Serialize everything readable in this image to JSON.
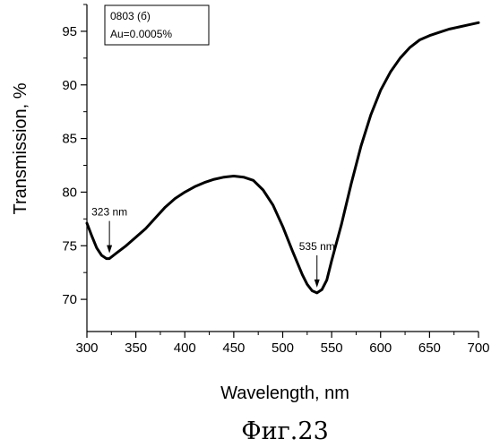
{
  "chart_data": {
    "type": "line",
    "xlabel": "Wavelength, nm",
    "ylabel": "Transmission, %",
    "xlim": [
      300,
      700
    ],
    "ylim": [
      67,
      97.5
    ],
    "x_ticks": [
      300,
      350,
      400,
      450,
      500,
      550,
      600,
      650,
      700
    ],
    "y_ticks": [
      70,
      75,
      80,
      85,
      90,
      95
    ],
    "grid": false,
    "legend": {
      "placement": "top-left",
      "lines": [
        "0803 (б)",
        "Au=0.0005%"
      ]
    },
    "series": [
      {
        "x": [
          300,
          305,
          310,
          315,
          320,
          323,
          330,
          340,
          350,
          360,
          370,
          380,
          390,
          400,
          410,
          420,
          430,
          440,
          450,
          460,
          470,
          480,
          490,
          500,
          510,
          520,
          525,
          530,
          535,
          540,
          545,
          550,
          560,
          570,
          580,
          590,
          600,
          610,
          620,
          630,
          640,
          650,
          660,
          670,
          680,
          690,
          700
        ],
        "y": [
          77.1,
          75.9,
          74.8,
          74.1,
          73.8,
          73.8,
          74.3,
          75.0,
          75.8,
          76.6,
          77.6,
          78.6,
          79.4,
          80.0,
          80.5,
          80.9,
          81.2,
          81.4,
          81.5,
          81.4,
          81.1,
          80.2,
          78.8,
          76.8,
          74.5,
          72.3,
          71.4,
          70.8,
          70.6,
          70.9,
          71.8,
          73.6,
          77.0,
          80.8,
          84.3,
          87.2,
          89.5,
          91.2,
          92.5,
          93.5,
          94.2,
          94.6,
          94.9,
          95.2,
          95.4,
          95.6,
          95.8
        ]
      }
    ],
    "annotations": [
      {
        "text": "323 nm",
        "x": 323,
        "y": 73.8
      },
      {
        "text": "535 nm",
        "x": 535,
        "y": 70.6
      }
    ]
  },
  "caption": "Фиг.23"
}
